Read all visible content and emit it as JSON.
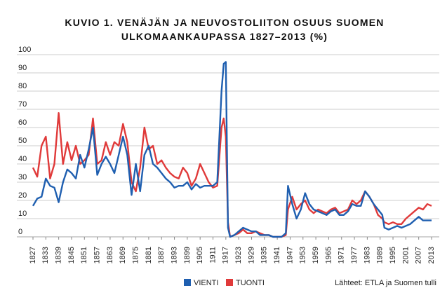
{
  "chart_data": {
    "type": "line",
    "title": "KUVIO 1. VENÄJÄN JA NEUVOSTOLIITON OSUUS SUOMEN ULKOMAANKAUPASSA 1827–2013 (%)",
    "source": "Lähteet: ETLA ja Suomen tulli",
    "x": [
      1827,
      1829,
      1831,
      1833,
      1835,
      1837,
      1839,
      1841,
      1843,
      1845,
      1847,
      1849,
      1851,
      1853,
      1855,
      1857,
      1859,
      1861,
      1863,
      1865,
      1867,
      1869,
      1871,
      1873,
      1875,
      1877,
      1879,
      1881,
      1883,
      1885,
      1887,
      1889,
      1891,
      1893,
      1895,
      1897,
      1899,
      1901,
      1903,
      1905,
      1907,
      1909,
      1911,
      1913,
      1915,
      1916,
      1917,
      1918,
      1919,
      1921,
      1923,
      1925,
      1927,
      1929,
      1931,
      1933,
      1935,
      1937,
      1939,
      1941,
      1943,
      1945,
      1946,
      1948,
      1950,
      1952,
      1954,
      1956,
      1958,
      1960,
      1962,
      1964,
      1966,
      1968,
      1970,
      1972,
      1974,
      1976,
      1978,
      1980,
      1982,
      1984,
      1986,
      1988,
      1990,
      1991,
      1993,
      1995,
      1997,
      1999,
      2001,
      2003,
      2005,
      2007,
      2009,
      2011,
      2013
    ],
    "series": [
      {
        "name": "VIENTI",
        "color": "#1f5fb0",
        "values": [
          17,
          21,
          22,
          32,
          28,
          27,
          19,
          30,
          37,
          35,
          32,
          45,
          38,
          48,
          60,
          34,
          40,
          44,
          40,
          35,
          45,
          55,
          45,
          23,
          40,
          25,
          45,
          50,
          40,
          38,
          35,
          32,
          30,
          27,
          28,
          28,
          30,
          26,
          29,
          27,
          28,
          28,
          28,
          30,
          80,
          95,
          96,
          5,
          0,
          1,
          3,
          5,
          4,
          3,
          3,
          1,
          1,
          1,
          0,
          0,
          0,
          2,
          28,
          18,
          10,
          15,
          24,
          18,
          15,
          14,
          13,
          12,
          14,
          15,
          12,
          12,
          14,
          18,
          17,
          17,
          25,
          22,
          18,
          15,
          12,
          5,
          4,
          5,
          6,
          5,
          6,
          7,
          9,
          11,
          9,
          9,
          9
        ]
      },
      {
        "name": "TUONTI",
        "color": "#e03a3a",
        "values": [
          38,
          33,
          50,
          55,
          32,
          40,
          68,
          40,
          52,
          42,
          50,
          40,
          42,
          45,
          65,
          40,
          42,
          52,
          45,
          52,
          50,
          62,
          52,
          30,
          25,
          38,
          60,
          48,
          50,
          40,
          42,
          38,
          35,
          33,
          32,
          38,
          35,
          28,
          32,
          40,
          35,
          30,
          27,
          28,
          60,
          65,
          55,
          8,
          0,
          1,
          2,
          4,
          2,
          2,
          3,
          2,
          1,
          1,
          0,
          0,
          0,
          1,
          15,
          22,
          15,
          18,
          20,
          15,
          13,
          15,
          14,
          13,
          15,
          16,
          13,
          14,
          15,
          20,
          18,
          20,
          25,
          22,
          18,
          12,
          10,
          8,
          7,
          8,
          7,
          7,
          10,
          12,
          14,
          16,
          15,
          18,
          17
        ]
      }
    ],
    "xlim": [
      1827,
      2013
    ],
    "xticks": [
      1827,
      1833,
      1839,
      1845,
      1851,
      1857,
      1863,
      1869,
      1875,
      1881,
      1887,
      1893,
      1899,
      1905,
      1911,
      1917,
      1923,
      1929,
      1935,
      1941,
      1947,
      1953,
      1959,
      1965,
      1971,
      1977,
      1983,
      1989,
      1995,
      2001,
      2007,
      2013
    ],
    "ylim": [
      0,
      100
    ],
    "yticks": [
      0,
      10,
      20,
      30,
      40,
      50,
      60,
      70,
      80,
      90,
      100
    ],
    "grid": true
  }
}
